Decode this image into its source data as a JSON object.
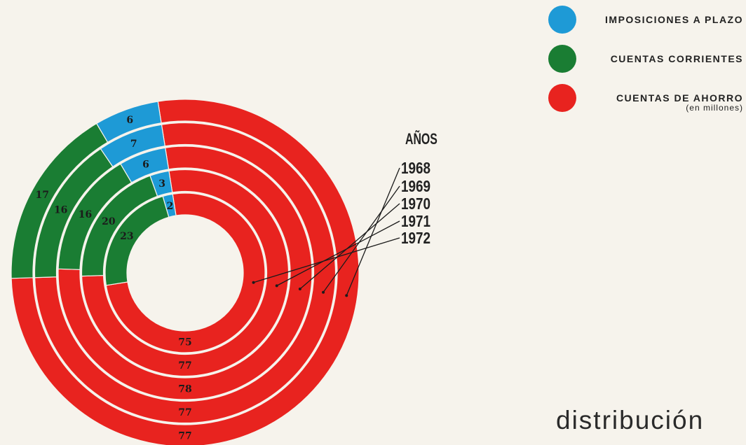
{
  "chart_data": {
    "type": "pie",
    "variant": "concentric-rings",
    "unit": "(en millones)",
    "legend": [
      {
        "label": "IMPOSICIONES A PLAZO",
        "color": "#1e9ad6"
      },
      {
        "label": "CUENTAS CORRIENTES",
        "color": "#1a7d33"
      },
      {
        "label": "CUENTAS DE AHORRO",
        "sublabel": "(en millones)",
        "color": "#e8231f"
      }
    ],
    "years_title": "AÑOS",
    "rings": [
      {
        "year": "1968",
        "imposiciones": 6,
        "corrientes": 17,
        "ahorro": 77
      },
      {
        "year": "1969",
        "imposiciones": 7,
        "corrientes": 16,
        "ahorro": 77
      },
      {
        "year": "1970",
        "imposiciones": 6,
        "corrientes": 16,
        "ahorro": 78
      },
      {
        "year": "1971",
        "imposiciones": 3,
        "corrientes": 20,
        "ahorro": 77
      },
      {
        "year": "1972",
        "imposiciones": 2,
        "corrientes": 23,
        "ahorro": 75
      }
    ]
  },
  "page_word": "distribución"
}
